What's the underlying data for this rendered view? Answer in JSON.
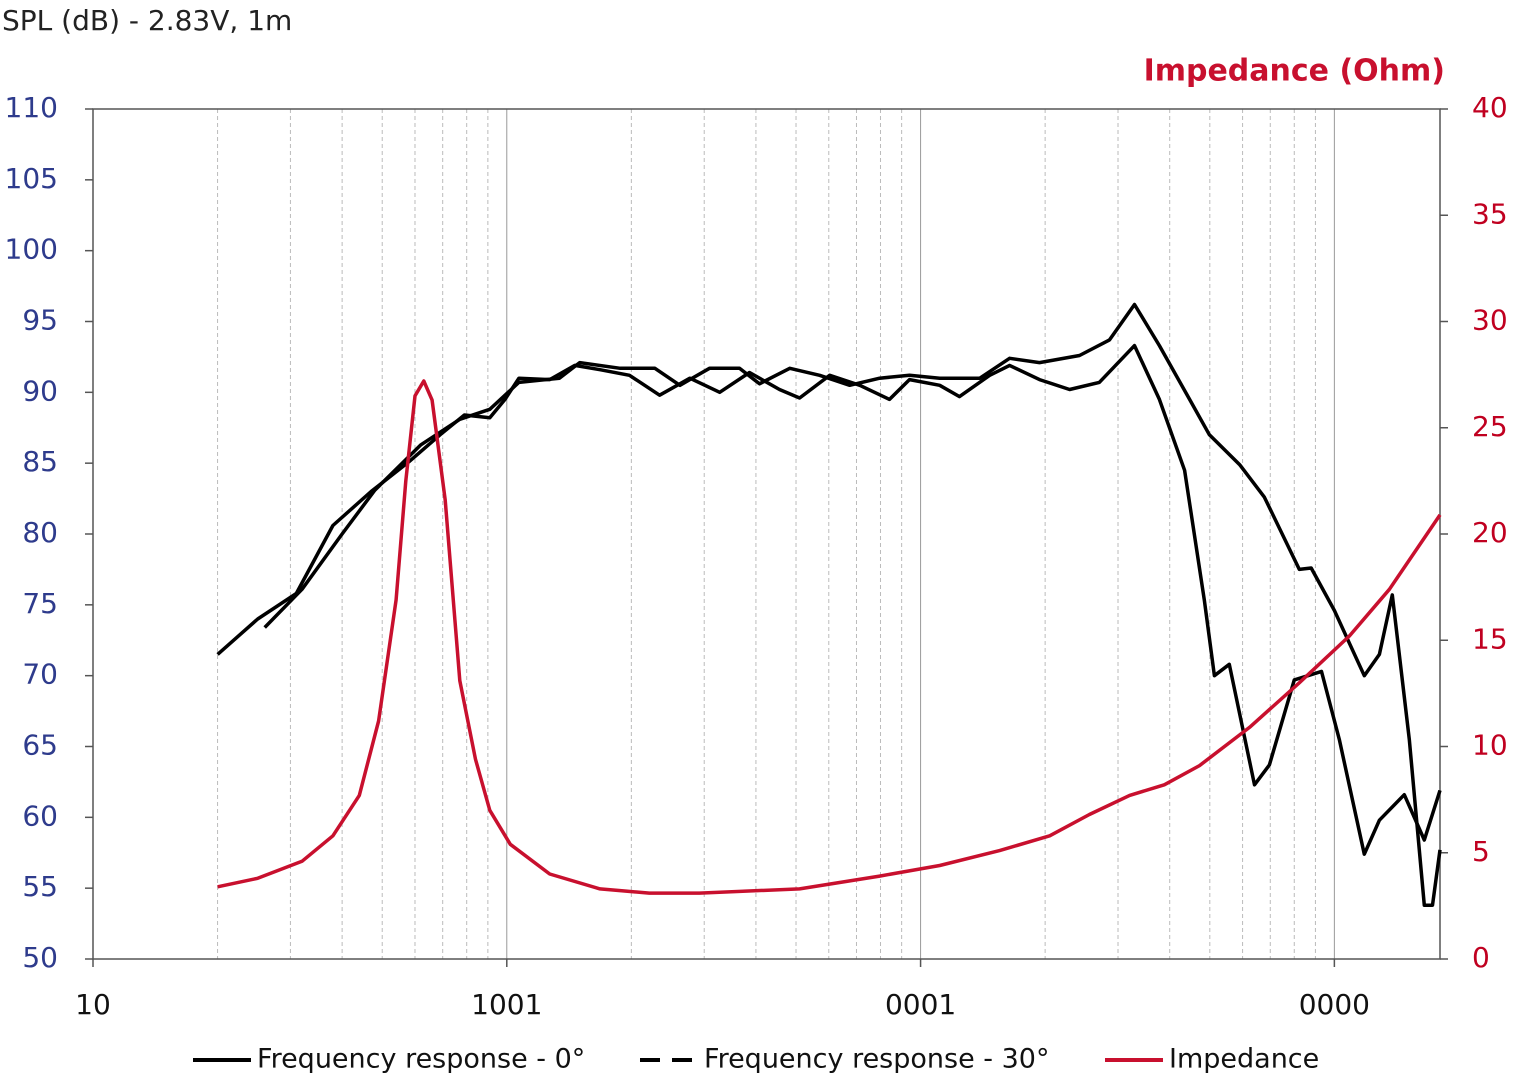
{
  "chart_data": {
    "type": "line",
    "title": "SPL (dB) - 2.83V, 1m",
    "y2_label": "Impedance (Ohm)",
    "xscale": "log",
    "xlim": [
      10,
      18000
    ],
    "xticks": [
      10,
      {
        "value": 100,
        "label": "1001"
      },
      {
        "value": 1000,
        "label": "0001"
      },
      {
        "value": 10000,
        "label": "0000"
      }
    ],
    "ylim": [
      50,
      110
    ],
    "yticks": [
      50,
      55,
      60,
      65,
      70,
      75,
      80,
      85,
      90,
      95,
      100,
      105,
      110
    ],
    "y2lim": [
      0,
      40
    ],
    "y2ticks": [
      0,
      5,
      10,
      15,
      20,
      25,
      30,
      35,
      40
    ],
    "grid": true,
    "legend": "bottom",
    "series": [
      {
        "name": "Frequency response - 0°",
        "color": "#000000",
        "dash": false,
        "x": [
          20,
          25,
          31,
          38,
          47,
          58,
          69,
          79,
          91,
          99,
          107,
          127,
          146,
          168,
          198,
          234,
          277,
          327,
          386,
          456,
          510,
          603,
          713,
          841,
          940,
          1112,
          1242,
          1469,
          1641,
          1938,
          2291,
          2704,
          3289,
          3776,
          4345,
          4853,
          5129,
          5572,
          6412,
          6966,
          8000,
          9311,
          10280,
          11810,
          12850,
          14760,
          16490,
          18000
        ],
        "values": [
          71.5,
          74,
          75.8,
          80.6,
          83,
          85.1,
          87,
          88.4,
          88.2,
          89.5,
          91,
          90.9,
          91.9,
          91.6,
          91.2,
          89.8,
          91,
          90,
          91.4,
          90.2,
          89.6,
          91.2,
          90.5,
          89.5,
          90.9,
          90.5,
          89.7,
          91.2,
          91.9,
          90.9,
          90.2,
          90.7,
          93.3,
          89.5,
          84.5,
          75.3,
          70,
          70.8,
          62.3,
          63.7,
          69.7,
          70.3,
          65.5,
          57.4,
          59.8,
          61.6,
          58.4,
          61.9
        ]
      },
      {
        "name": "Frequency response - 30°",
        "color": "#000000",
        "dash": true,
        "x": [
          26,
          32,
          40,
          48,
          62,
          77,
          91,
          107,
          134,
          150,
          188,
          228,
          262,
          309,
          365,
          408,
          483,
          570,
          674,
          796,
          940,
          1112,
          1390,
          1641,
          1938,
          2421,
          2862,
          3289,
          3776,
          4467,
          4989,
          5902,
          6776,
          8227,
          8790,
          10000,
          11810,
          12850,
          13800,
          15170,
          16490,
          17260,
          18000
        ],
        "values": [
          73.4,
          76.1,
          80,
          83.1,
          86.3,
          88.1,
          88.8,
          90.7,
          91,
          92.1,
          91.7,
          91.7,
          90.5,
          91.7,
          91.7,
          90.6,
          91.7,
          91.2,
          90.5,
          91,
          91.2,
          91,
          91,
          92.4,
          92.1,
          92.6,
          93.7,
          96.2,
          93.3,
          89.5,
          87,
          84.9,
          82.6,
          77.5,
          77.6,
          74.6,
          70,
          71.5,
          75.7,
          65.5,
          53.8,
          53.8,
          57.7
        ]
      },
      {
        "name": "Impedance",
        "color": "#c8102e",
        "dash": false,
        "axis": "y2",
        "x": [
          20,
          25,
          32,
          38,
          44,
          49,
          54,
          57,
          60,
          63,
          66,
          71,
          77,
          84,
          91,
          102,
          127,
          168,
          221,
          292,
          510,
          796,
          1112,
          1552,
          2051,
          2559,
          3199,
          3882,
          4721,
          6237,
          8227,
          10870,
          13580,
          18000
        ],
        "values": [
          3.4,
          3.8,
          4.6,
          5.8,
          7.7,
          11.2,
          16.9,
          22.5,
          26.5,
          27.2,
          26.3,
          21.6,
          13.1,
          9.4,
          7,
          5.4,
          4,
          3.3,
          3.1,
          3.1,
          3.3,
          3.9,
          4.4,
          5.1,
          5.8,
          6.8,
          7.7,
          8.2,
          9.1,
          10.9,
          13,
          15.2,
          17.4,
          20.9
        ]
      }
    ]
  }
}
